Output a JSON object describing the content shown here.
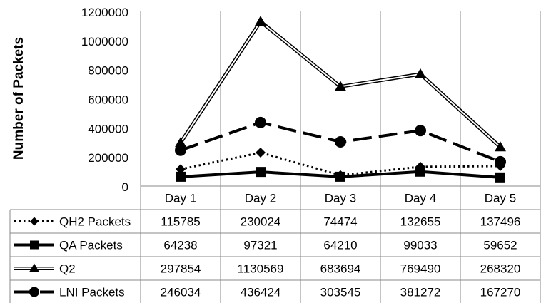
{
  "chart_data": {
    "type": "line",
    "title": "",
    "ylabel": "Number of Packets",
    "xlabel": "",
    "categories": [
      "Day 1",
      "Day 2",
      "Day 3",
      "Day 4",
      "Day 5"
    ],
    "ylim": [
      0,
      1200000
    ],
    "yticks": [
      0,
      200000,
      400000,
      600000,
      800000,
      1000000,
      1200000
    ],
    "ytick_labels": [
      "0",
      "200000",
      "400000",
      "600000",
      "800000",
      "1000000",
      "1200000"
    ],
    "grid": "vertical-category-lines",
    "legend": "data-table-below",
    "series": [
      {
        "name": "QH2 Packets",
        "style": "dotted",
        "marker": "diamond",
        "values": [
          115785,
          230024,
          74474,
          132655,
          137496
        ],
        "labels": [
          "115785",
          "230024",
          "74474",
          "132655",
          "137496"
        ]
      },
      {
        "name": "QA Packets",
        "style": "solid-thick",
        "marker": "square",
        "values": [
          64238,
          97321,
          64210,
          99033,
          59652
        ],
        "labels": [
          "64238",
          "97321",
          "64210",
          "99033",
          "59652"
        ]
      },
      {
        "name": "Q2",
        "style": "double",
        "marker": "triangle",
        "values": [
          297854,
          1130569,
          683694,
          769490,
          268320
        ],
        "labels": [
          "297854",
          "1130569",
          "683694",
          "769490",
          "268320"
        ]
      },
      {
        "name": "LNI Packets",
        "style": "long-dash",
        "marker": "circle",
        "values": [
          246034,
          436424,
          303545,
          381272,
          167270
        ],
        "labels": [
          "246034",
          "436424",
          "303545",
          "381272",
          "167270"
        ]
      }
    ],
    "colors": {
      "line": "#000000",
      "grid": "#888888",
      "background": "#ffffff"
    }
  }
}
